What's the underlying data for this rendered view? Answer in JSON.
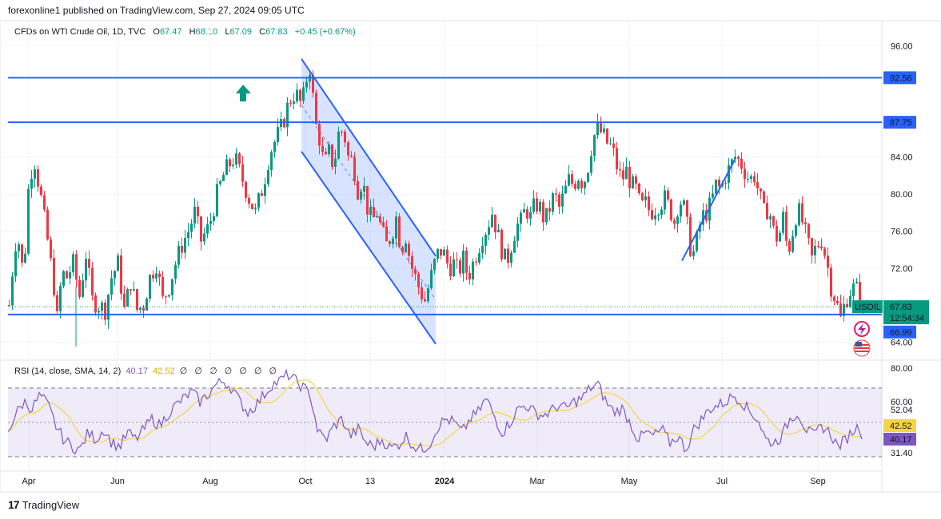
{
  "header": {
    "publisher": "forexonline1 published on TradingView.com, Sep 27, 2024 09:05 UTC"
  },
  "legend": {
    "symbol": "CFDs on WTI Crude Oil, 1D, TVC",
    "o_label": "O",
    "o_value": "67.47",
    "h_label": "H",
    "h_value": "68.10",
    "l_label": "L",
    "l_value": "67.09",
    "c_label": "C",
    "c_value": "67.83",
    "change": "+0.45 (+0.67%)"
  },
  "rsi_legend": {
    "title": "RSI (14, close, SMA, 14, 2)",
    "rsi_value": "40.17",
    "sma_value": "42.52",
    "na": "∅ ∅ ∅ ∅ ∅ ∅ ∅"
  },
  "brand": {
    "name": "TradingView",
    "logo": "17"
  },
  "colors": {
    "up": "#089981",
    "down": "#f23645",
    "line": "#2962ff",
    "channel_fill": "#2962ff",
    "rsi": "#7e57c2",
    "rsi_sma": "#f5d547"
  },
  "icons": [
    "up-arrow-icon",
    "lightning-icon",
    "us-flag-icon"
  ],
  "chart_data": {
    "type": "candlestick",
    "symbol": "USOIL",
    "interval": "1D",
    "x_labels": [
      "Apr",
      "Jun",
      "Aug",
      "Oct",
      "13",
      "2024",
      "Mar",
      "May",
      "Jul",
      "Sep"
    ],
    "y_ticks": [
      "96.00",
      "84.00",
      "80.00",
      "76.00",
      "72.00",
      "64.00"
    ],
    "ylim": [
      63.0,
      97.0
    ],
    "close_path": [
      [
        0,
        68.0
      ],
      [
        6,
        73.5
      ],
      [
        10,
        76.0
      ],
      [
        18,
        71.0
      ],
      [
        25,
        82.0
      ],
      [
        32,
        83.5
      ],
      [
        40,
        79.5
      ],
      [
        48,
        75.0
      ],
      [
        56,
        70.0
      ],
      [
        60,
        66.5
      ],
      [
        66,
        71.5
      ],
      [
        72,
        71.0
      ],
      [
        80,
        72.5
      ],
      [
        88,
        69.0
      ],
      [
        96,
        73.5
      ],
      [
        104,
        68.5
      ],
      [
        112,
        68.0
      ],
      [
        120,
        67.5
      ],
      [
        128,
        71.0
      ],
      [
        136,
        72.5
      ],
      [
        144,
        67.5
      ],
      [
        152,
        70.5
      ],
      [
        160,
        67.5
      ],
      [
        168,
        68.0
      ],
      [
        176,
        71.0
      ],
      [
        184,
        72.5
      ],
      [
        192,
        68.5
      ],
      [
        200,
        70.0
      ],
      [
        208,
        72.5
      ],
      [
        216,
        74.5
      ],
      [
        224,
        76.0
      ],
      [
        232,
        78.0
      ],
      [
        240,
        75.0
      ],
      [
        250,
        76.5
      ],
      [
        260,
        80.0
      ],
      [
        270,
        82.5
      ],
      [
        282,
        84.0
      ],
      [
        290,
        82.0
      ],
      [
        300,
        79.5
      ],
      [
        308,
        78.0
      ],
      [
        318,
        81.0
      ],
      [
        326,
        84.5
      ],
      [
        334,
        86.0
      ],
      [
        342,
        87.5
      ],
      [
        350,
        90.0
      ],
      [
        358,
        91.0
      ],
      [
        366,
        89.5
      ],
      [
        372,
        92.5
      ],
      [
        377,
        94.0
      ],
      [
        382,
        88.0
      ],
      [
        388,
        86.0
      ],
      [
        394,
        83.0
      ],
      [
        400,
        84.5
      ],
      [
        406,
        83.0
      ],
      [
        412,
        86.5
      ],
      [
        418,
        87.0
      ],
      [
        424,
        84.0
      ],
      [
        430,
        83.5
      ],
      [
        436,
        80.5
      ],
      [
        442,
        81.5
      ],
      [
        448,
        78.5
      ],
      [
        454,
        77.0
      ],
      [
        460,
        78.0
      ],
      [
        466,
        76.0
      ],
      [
        472,
        74.5
      ],
      [
        478,
        75.5
      ],
      [
        484,
        77.5
      ],
      [
        490,
        74.0
      ],
      [
        496,
        75.5
      ],
      [
        502,
        72.5
      ],
      [
        508,
        71.0
      ],
      [
        514,
        69.5
      ],
      [
        520,
        68.5
      ],
      [
        526,
        70.5
      ],
      [
        532,
        72.5
      ],
      [
        538,
        74.0
      ],
      [
        544,
        73.5
      ],
      [
        550,
        72.0
      ],
      [
        556,
        72.5
      ],
      [
        562,
        71.5
      ],
      [
        568,
        73.0
      ],
      [
        574,
        71.0
      ],
      [
        580,
        72.5
      ],
      [
        586,
        74.0
      ],
      [
        592,
        75.5
      ],
      [
        598,
        76.5
      ],
      [
        604,
        78.0
      ],
      [
        610,
        76.0
      ],
      [
        616,
        74.0
      ],
      [
        622,
        72.5
      ],
      [
        628,
        74.5
      ],
      [
        634,
        76.5
      ],
      [
        640,
        77.0
      ],
      [
        646,
        78.5
      ],
      [
        652,
        77.5
      ],
      [
        658,
        79.0
      ],
      [
        664,
        78.5
      ],
      [
        670,
        77.0
      ],
      [
        676,
        78.5
      ],
      [
        682,
        80.0
      ],
      [
        688,
        78.5
      ],
      [
        694,
        80.0
      ],
      [
        700,
        81.5
      ],
      [
        706,
        81.0
      ],
      [
        712,
        82.0
      ],
      [
        718,
        81.0
      ],
      [
        724,
        83.0
      ],
      [
        730,
        86.0
      ],
      [
        736,
        87.0
      ],
      [
        742,
        86.5
      ],
      [
        748,
        85.5
      ],
      [
        754,
        85.0
      ],
      [
        760,
        83.0
      ],
      [
        766,
        81.5
      ],
      [
        772,
        82.5
      ],
      [
        778,
        81.0
      ],
      [
        784,
        80.5
      ],
      [
        790,
        78.5
      ],
      [
        796,
        79.0
      ],
      [
        802,
        78.0
      ],
      [
        808,
        78.5
      ],
      [
        814,
        79.0
      ],
      [
        820,
        79.5
      ],
      [
        826,
        78.5
      ],
      [
        832,
        77.0
      ],
      [
        838,
        79.5
      ],
      [
        844,
        78.5
      ],
      [
        850,
        75.5
      ],
      [
        854,
        73.0
      ],
      [
        860,
        75.0
      ],
      [
        866,
        77.5
      ],
      [
        872,
        78.0
      ],
      [
        878,
        79.0
      ],
      [
        884,
        81.0
      ],
      [
        890,
        80.5
      ],
      [
        896,
        82.0
      ],
      [
        902,
        83.0
      ],
      [
        908,
        84.0
      ],
      [
        914,
        83.5
      ],
      [
        920,
        82.5
      ],
      [
        926,
        81.5
      ],
      [
        932,
        82.0
      ],
      [
        938,
        80.0
      ],
      [
        944,
        78.0
      ],
      [
        950,
        78.5
      ],
      [
        956,
        76.0
      ],
      [
        962,
        75.0
      ],
      [
        968,
        77.5
      ],
      [
        974,
        73.5
      ],
      [
        980,
        76.0
      ],
      [
        986,
        78.5
      ],
      [
        992,
        77.0
      ],
      [
        998,
        75.0
      ],
      [
        1004,
        73.0
      ],
      [
        1010,
        74.5
      ],
      [
        1016,
        75.0
      ],
      [
        1022,
        73.0
      ],
      [
        1028,
        70.0
      ],
      [
        1034,
        68.5
      ],
      [
        1040,
        66.5
      ],
      [
        1046,
        68.5
      ],
      [
        1052,
        69.5
      ],
      [
        1058,
        70.0
      ],
      [
        1064,
        69.0
      ],
      [
        1070,
        70.5
      ],
      [
        1074,
        67.83
      ]
    ],
    "rsi_path": [
      [
        0,
        45
      ],
      [
        10,
        55
      ],
      [
        20,
        62
      ],
      [
        30,
        58
      ],
      [
        40,
        66
      ],
      [
        50,
        60
      ],
      [
        60,
        48
      ],
      [
        70,
        40
      ],
      [
        80,
        36
      ],
      [
        90,
        34
      ],
      [
        100,
        44
      ],
      [
        110,
        40
      ],
      [
        120,
        46
      ],
      [
        130,
        38
      ],
      [
        140,
        36
      ],
      [
        150,
        44
      ],
      [
        160,
        40
      ],
      [
        170,
        46
      ],
      [
        180,
        52
      ],
      [
        190,
        48
      ],
      [
        200,
        55
      ],
      [
        210,
        60
      ],
      [
        220,
        64
      ],
      [
        230,
        68
      ],
      [
        240,
        62
      ],
      [
        250,
        66
      ],
      [
        260,
        72
      ],
      [
        270,
        74
      ],
      [
        280,
        70
      ],
      [
        290,
        62
      ],
      [
        300,
        56
      ],
      [
        310,
        60
      ],
      [
        320,
        66
      ],
      [
        330,
        72
      ],
      [
        340,
        74
      ],
      [
        350,
        78
      ],
      [
        360,
        74
      ],
      [
        370,
        70
      ],
      [
        378,
        66
      ],
      [
        388,
        44
      ],
      [
        398,
        40
      ],
      [
        408,
        48
      ],
      [
        418,
        52
      ],
      [
        428,
        42
      ],
      [
        438,
        46
      ],
      [
        448,
        38
      ],
      [
        458,
        36
      ],
      [
        468,
        40
      ],
      [
        478,
        35
      ],
      [
        488,
        37
      ],
      [
        498,
        42
      ],
      [
        508,
        36
      ],
      [
        518,
        34
      ],
      [
        528,
        38
      ],
      [
        538,
        48
      ],
      [
        548,
        52
      ],
      [
        558,
        50
      ],
      [
        568,
        44
      ],
      [
        578,
        52
      ],
      [
        588,
        56
      ],
      [
        598,
        64
      ],
      [
        608,
        54
      ],
      [
        618,
        44
      ],
      [
        628,
        50
      ],
      [
        638,
        58
      ],
      [
        648,
        60
      ],
      [
        658,
        56
      ],
      [
        668,
        54
      ],
      [
        678,
        56
      ],
      [
        688,
        60
      ],
      [
        698,
        58
      ],
      [
        708,
        62
      ],
      [
        718,
        64
      ],
      [
        728,
        70
      ],
      [
        738,
        72
      ],
      [
        748,
        62
      ],
      [
        758,
        56
      ],
      [
        768,
        58
      ],
      [
        778,
        50
      ],
      [
        788,
        40
      ],
      [
        798,
        44
      ],
      [
        808,
        42
      ],
      [
        818,
        46
      ],
      [
        828,
        38
      ],
      [
        838,
        42
      ],
      [
        848,
        34
      ],
      [
        858,
        46
      ],
      [
        868,
        52
      ],
      [
        878,
        58
      ],
      [
        888,
        60
      ],
      [
        898,
        62
      ],
      [
        908,
        66
      ],
      [
        918,
        62
      ],
      [
        928,
        56
      ],
      [
        938,
        52
      ],
      [
        948,
        40
      ],
      [
        958,
        38
      ],
      [
        968,
        42
      ],
      [
        978,
        52
      ],
      [
        988,
        56
      ],
      [
        998,
        46
      ],
      [
        1008,
        42
      ],
      [
        1018,
        48
      ],
      [
        1028,
        44
      ],
      [
        1038,
        36
      ],
      [
        1048,
        40
      ],
      [
        1058,
        46
      ],
      [
        1068,
        48
      ],
      [
        1074,
        40.17
      ]
    ],
    "horizontal_levels": [
      92.56,
      87.75,
      66.99
    ],
    "price_tags": [
      {
        "label": "92.56"
      },
      {
        "label": "87.75"
      },
      {
        "label": "USOIL",
        "value": "67.83",
        "time": "12:54:34"
      },
      {
        "label": "66.99"
      }
    ],
    "channel": {
      "upper": [
        [
          377,
          94.6
        ],
        [
          545,
          73.3
        ]
      ],
      "lower": [
        [
          377,
          84.6
        ],
        [
          545,
          63.8
        ]
      ]
    },
    "uptrend": [
      [
        853,
        72.8
      ],
      [
        919,
        83.7
      ]
    ],
    "rsi_axis": [
      "80.00",
      "60.00",
      "52.04",
      "31.40"
    ],
    "rsi_tags": [
      {
        "label": "42.52",
        "role": "sma"
      },
      {
        "label": "40.17",
        "role": "rsi"
      }
    ]
  }
}
